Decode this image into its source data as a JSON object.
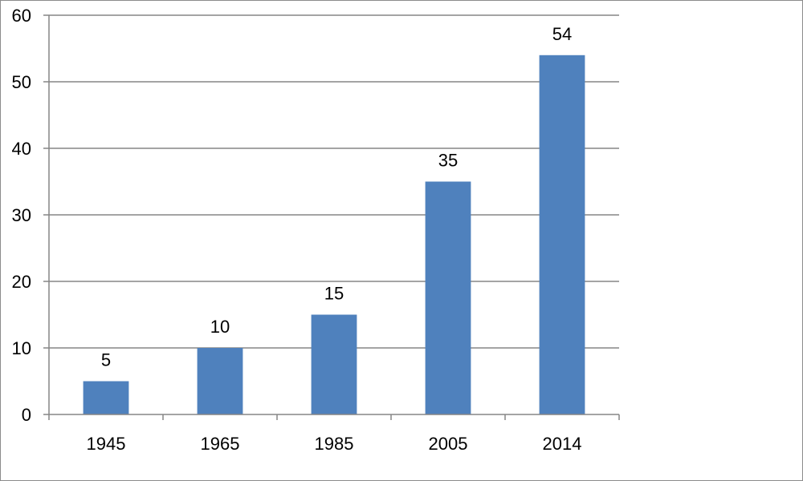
{
  "chart_data": {
    "type": "bar",
    "title": "",
    "xlabel": "",
    "ylabel": "",
    "categories": [
      "1945",
      "1965",
      "1985",
      "2005",
      "2014"
    ],
    "values": [
      5,
      10,
      15,
      35,
      54
    ],
    "data_labels": [
      "5",
      "10",
      "15",
      "35",
      "54"
    ],
    "ylim": [
      0,
      60
    ],
    "yticks": [
      0,
      10,
      20,
      30,
      40,
      50,
      60
    ],
    "ytick_labels": [
      "0",
      "10",
      "20",
      "30",
      "40",
      "50",
      "60"
    ],
    "grid": true,
    "legend": "none",
    "colors": {
      "bar": "#4f81bd",
      "grid": "#868686",
      "axis": "#868686",
      "text": "#000000"
    }
  }
}
